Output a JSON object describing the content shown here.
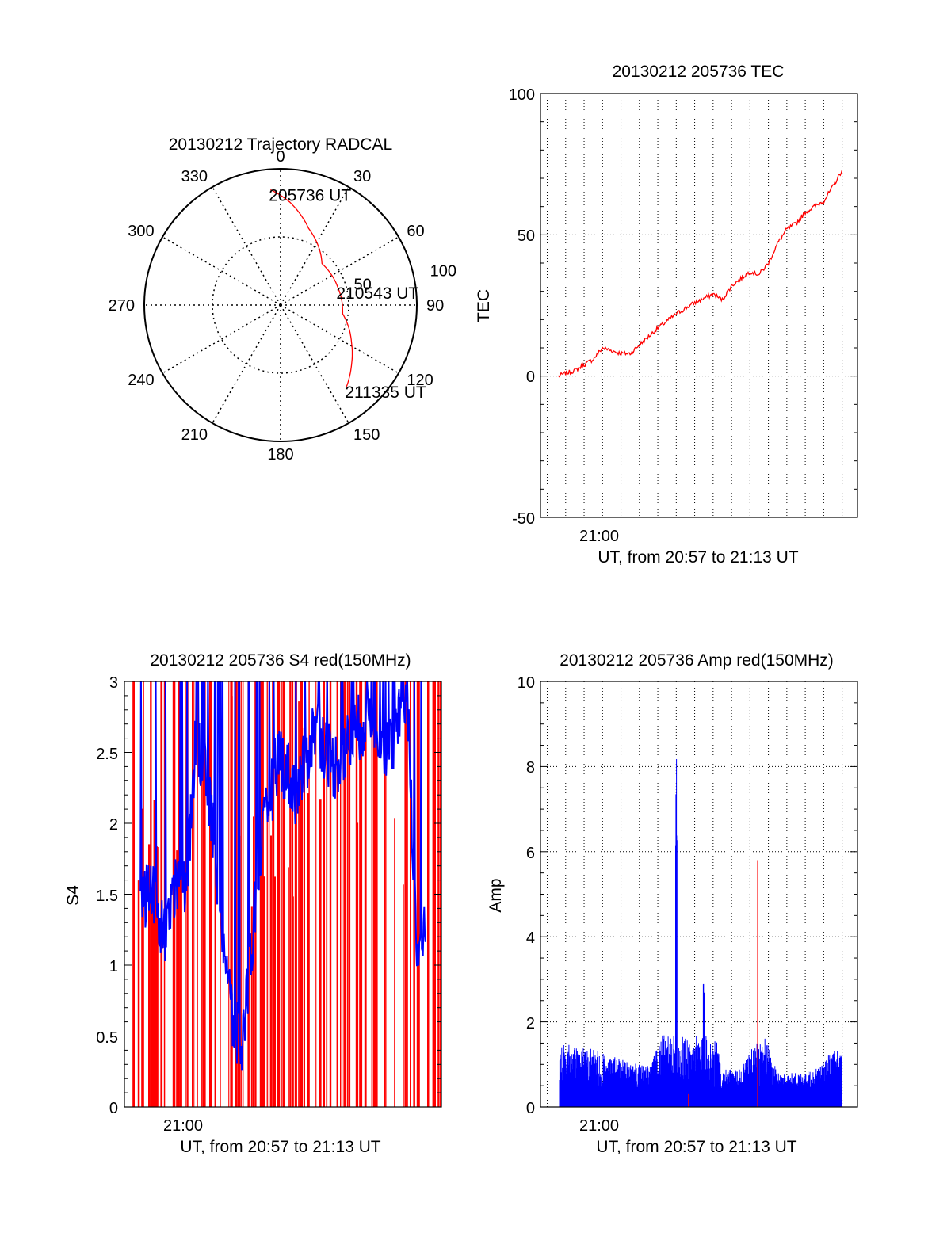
{
  "colors": {
    "red": "#ff0000",
    "blue": "#0000ff",
    "axis": "#000000",
    "grid": "#000000"
  },
  "chart_data": [
    {
      "type": "polar",
      "title": "20130212 Trajectory RADCAL",
      "azimuth_labels": [
        "0",
        "30",
        "60",
        "90",
        "120",
        "150",
        "180",
        "210",
        "240",
        "270",
        "300",
        "330"
      ],
      "ring_labels": [
        "50",
        "100"
      ],
      "rlim": [
        0,
        100
      ],
      "grid": true,
      "series": [
        {
          "color": "red",
          "points": [
            {
              "az": -5,
              "r": 85
            },
            {
              "az": 5,
              "r": 76
            },
            {
              "az": 20,
              "r": 60
            },
            {
              "az": 45,
              "r": 43
            },
            {
              "az": 73,
              "r": 44
            },
            {
              "az": 98,
              "r": 46
            },
            {
              "az": 118,
              "r": 59
            },
            {
              "az": 130,
              "r": 68
            },
            {
              "az": 141,
              "r": 77
            }
          ]
        }
      ],
      "annotations": [
        {
          "text": "205736 UT",
          "az": -5,
          "r": 85
        },
        {
          "text": "210543 UT",
          "az": 73,
          "r": 44
        },
        {
          "text": "211335 UT",
          "az": 141,
          "r": 77
        }
      ]
    },
    {
      "type": "line",
      "title": "20130212 205736 TEC",
      "xlabel": "UT, from 20:57 to 21:13 UT",
      "ylabel": "TEC",
      "xlim": [
        "20:57",
        "21:13"
      ],
      "ylim": [
        -50,
        100
      ],
      "yticks": [
        "100",
        "50",
        "0",
        "-50"
      ],
      "xtick_label": "21:00",
      "grid": true,
      "series": [
        {
          "color": "red",
          "x": [
            "20:57:36",
            "20:58:00",
            "20:58:30",
            "20:59:00",
            "20:59:30",
            "21:00:00",
            "21:00:30",
            "21:01:00",
            "21:01:30",
            "21:02:00",
            "21:03:00",
            "21:04:00",
            "21:05:00",
            "21:06:00",
            "21:06:30",
            "21:07:00",
            "21:08:00",
            "21:08:30",
            "21:09:00",
            "21:09:30",
            "21:10:00",
            "21:10:30",
            "21:11:00",
            "21:12:00",
            "21:12:30",
            "21:13:00"
          ],
          "values": [
            0,
            1,
            2,
            4,
            6,
            10,
            9,
            8,
            8,
            11,
            17,
            22,
            26,
            29,
            27,
            32,
            37,
            36,
            40,
            47,
            52,
            54,
            58,
            62,
            67,
            73
          ]
        }
      ]
    },
    {
      "type": "bar",
      "title": "20130212 205736 S4 red(150MHz)",
      "xlabel": "UT, from 20:57 to 21:13 UT",
      "ylabel": "S4",
      "xlim": [
        "20:57",
        "21:13"
      ],
      "ylim": [
        0,
        3
      ],
      "yticks": [
        "0",
        "0.5",
        "1",
        "1.5",
        "2",
        "2.5",
        "3"
      ],
      "xtick_label": "21:00",
      "grid": false,
      "series": [
        {
          "color": "blue",
          "x": [
            "20:57:30",
            "20:58:00",
            "20:58:30",
            "20:59:00",
            "20:59:30",
            "21:00:00",
            "21:00:30",
            "21:01:00",
            "21:01:30",
            "21:02:00",
            "21:02:30",
            "21:03:00",
            "21:04:00",
            "21:05:00",
            "21:06:00",
            "21:07:00",
            "21:08:00",
            "21:09:00",
            "21:10:00",
            "21:11:00",
            "21:12:00",
            "21:12:30",
            "21:13:00"
          ],
          "values": [
            1.3,
            1.6,
            1.3,
            1.2,
            1.6,
            1.5,
            2.6,
            2.4,
            1.9,
            1.2,
            0.6,
            0.4,
            1.8,
            2.5,
            2.2,
            2.7,
            2.4,
            2.6,
            2.8,
            2.5,
            2.9,
            1.1,
            1.2
          ]
        }
      ]
    },
    {
      "type": "bar",
      "title": "20130212 205736 Amp red(150MHz)",
      "xlabel": "UT, from 20:57 to 21:13 UT",
      "ylabel": "Amp",
      "xlim": [
        "20:57",
        "21:13"
      ],
      "ylim": [
        0,
        10
      ],
      "yticks": [
        "0",
        "2",
        "4",
        "6",
        "8",
        "10"
      ],
      "xtick_label": "21:00",
      "grid": true,
      "series": [
        {
          "color": "blue",
          "x": [
            "20:57:40",
            "20:58:30",
            "20:59:30",
            "21:00:30",
            "21:01:30",
            "21:02:30",
            "21:03:00",
            "21:04:00",
            "21:04:30",
            "21:05:30",
            "21:06:30",
            "21:07:30",
            "21:08:40",
            "21:09:30",
            "21:10:30",
            "21:11:30",
            "21:12:30",
            "21:13:00"
          ],
          "values": [
            1.5,
            1.3,
            1.2,
            1.0,
            0.8,
            0.7,
            1.3,
            8.9,
            1.8,
            3.3,
            0.6,
            0.6,
            1.8,
            0.5,
            0.5,
            0.6,
            1.2,
            1.1
          ]
        },
        {
          "color": "red",
          "x": [
            "21:04:40",
            "21:08:25"
          ],
          "values": [
            0.3,
            5.8
          ]
        }
      ]
    }
  ]
}
